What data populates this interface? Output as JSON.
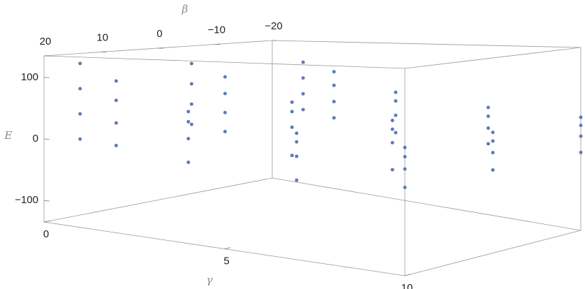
{
  "chart_data": {
    "type": "scatter3d",
    "xlabel": "γ",
    "ylabel": "β",
    "zlabel": "E",
    "xlim": [
      0,
      10
    ],
    "ylim": [
      -20,
      20
    ],
    "zlim": [
      -135,
      135
    ],
    "xticks": [
      0,
      5,
      10
    ],
    "yticks": [
      20,
      10,
      0,
      {
        "value": -10,
        "label": "−10"
      },
      {
        "value": -20,
        "label": "−20"
      }
    ],
    "zticks": [
      100,
      0,
      {
        "value": -100,
        "label": "−100"
      }
    ],
    "series": [
      {
        "color": "#5b7db5",
        "x": [
          1,
          1,
          1,
          2,
          2,
          2,
          4,
          4,
          4,
          7,
          7,
          7,
          10,
          10,
          10
        ],
        "y": [
          20,
          0,
          -20,
          20,
          0,
          -20,
          20,
          0,
          -20,
          20,
          0,
          -20,
          20,
          0,
          -20
        ],
        "z": [
          125,
          110,
          95,
          100,
          90,
          80,
          60,
          55,
          50,
          40,
          38,
          36,
          32,
          32,
          32
        ]
      },
      {
        "color": "#5b7db5",
        "x": [
          1,
          1,
          1,
          2,
          2,
          2,
          4,
          4,
          4,
          7,
          7,
          7,
          10,
          10,
          10
        ],
        "y": [
          20,
          0,
          -20,
          20,
          0,
          -20,
          20,
          0,
          -20,
          20,
          0,
          -20,
          20,
          0,
          -20
        ],
        "z": [
          85,
          75,
          65,
          70,
          62,
          55,
          45,
          40,
          35,
          28,
          25,
          22,
          20,
          20,
          20
        ]
      },
      {
        "color": "#5b7db5",
        "x": [
          1,
          1,
          1,
          2,
          2,
          2,
          4,
          4,
          4,
          7,
          7,
          7,
          10,
          10,
          10
        ],
        "y": [
          20,
          0,
          -20,
          20,
          0,
          -20,
          20,
          0,
          -20,
          20,
          0,
          -20,
          20,
          0,
          -20
        ],
        "z": [
          45,
          40,
          35,
          35,
          30,
          25,
          20,
          15,
          10,
          8,
          5,
          3,
          4,
          4,
          4
        ]
      },
      {
        "color": "#5b7db5",
        "x": [
          1,
          1,
          1,
          2,
          2,
          2,
          4,
          4,
          4,
          7,
          7,
          7,
          10,
          10,
          10
        ],
        "y": [
          20,
          0,
          -20,
          20,
          0,
          -20,
          20,
          0,
          -20,
          20,
          0,
          -20,
          20,
          0,
          -20
        ],
        "z": [
          5,
          5,
          5,
          0,
          -2,
          -5,
          -15,
          -30,
          -20,
          -25,
          -35,
          -22,
          -20,
          -20,
          -20
        ]
      }
    ]
  }
}
